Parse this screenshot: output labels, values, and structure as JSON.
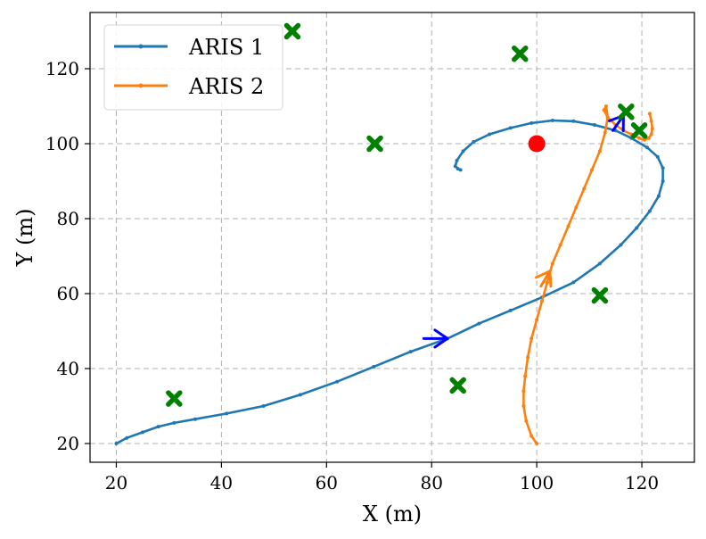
{
  "chart_data": {
    "type": "line",
    "xlabel": "X (m)",
    "ylabel": "Y (m)",
    "xlim": [
      15,
      130
    ],
    "ylim": [
      15,
      135
    ],
    "xticks": [
      20,
      40,
      60,
      80,
      100,
      120
    ],
    "yticks": [
      20,
      40,
      60,
      80,
      100,
      120
    ],
    "grid": true,
    "legend_position": "top-left",
    "series": [
      {
        "name": "ARIS 1",
        "color": "#1f77b4",
        "x": [
          20,
          22,
          25,
          28,
          31,
          35,
          41,
          48,
          55,
          62,
          69,
          76,
          83,
          89,
          95,
          101,
          107,
          112,
          116,
          119,
          121.5,
          123.2,
          124,
          124,
          123,
          121,
          118,
          115,
          111,
          107,
          103,
          99,
          95,
          91,
          88,
          86,
          84.8,
          84.5,
          85,
          85.5
        ],
        "y": [
          20,
          21.5,
          23,
          24.5,
          25.5,
          26.5,
          28,
          30,
          33,
          36.5,
          40.5,
          44.5,
          48,
          52,
          55.5,
          59,
          63,
          68,
          73,
          77.5,
          82,
          86,
          90,
          93.5,
          96.5,
          99,
          101.5,
          103.5,
          105,
          106,
          106.2,
          105.5,
          104.2,
          102.5,
          100.5,
          98,
          95.5,
          94,
          93.3,
          93
        ]
      },
      {
        "name": "ARIS 2",
        "color": "#ff7f0e",
        "x": [
          100,
          99,
          98,
          97.5,
          97.5,
          97.8,
          98.3,
          99,
          100,
          101,
          102,
          103,
          104.5,
          106,
          107.5,
          109,
          110.5,
          112,
          113,
          113.5,
          113.2,
          112.8,
          113.5,
          115,
          116.5,
          118,
          119.5,
          120.5,
          121.3,
          121.8,
          122,
          121.8,
          121.5
        ],
        "y": [
          20,
          22,
          26,
          30,
          34,
          38,
          43,
          48,
          53,
          58,
          63,
          68,
          73,
          78,
          83,
          88,
          93,
          98,
          103,
          107,
          110,
          109,
          107,
          105,
          103.5,
          102.5,
          101.5,
          101,
          101.5,
          102.5,
          104,
          106,
          108
        ]
      }
    ],
    "direction_arrows": [
      {
        "color": "#0000ff",
        "x_start": 78.5,
        "y_start": 48,
        "x_end": 83,
        "y_end": 48
      },
      {
        "color": "#0000ff",
        "x_start": 114.5,
        "y_start": 103.5,
        "x_end": 116.5,
        "y_end": 107.5
      },
      {
        "color": "#ff7f0e",
        "x_start": 100.8,
        "y_start": 62,
        "x_end": 102.5,
        "y_end": 66
      }
    ],
    "markers": {
      "crosses": {
        "color": "#008000",
        "points": [
          {
            "x": 53.5,
            "y": 130
          },
          {
            "x": 96.8,
            "y": 124
          },
          {
            "x": 69.2,
            "y": 100
          },
          {
            "x": 117,
            "y": 108.5
          },
          {
            "x": 119.5,
            "y": 103.5
          },
          {
            "x": 112,
            "y": 59.5
          },
          {
            "x": 85,
            "y": 35.5
          },
          {
            "x": 31,
            "y": 32
          }
        ]
      },
      "circle": {
        "color": "#ff0000",
        "x": 100,
        "y": 100
      }
    }
  }
}
